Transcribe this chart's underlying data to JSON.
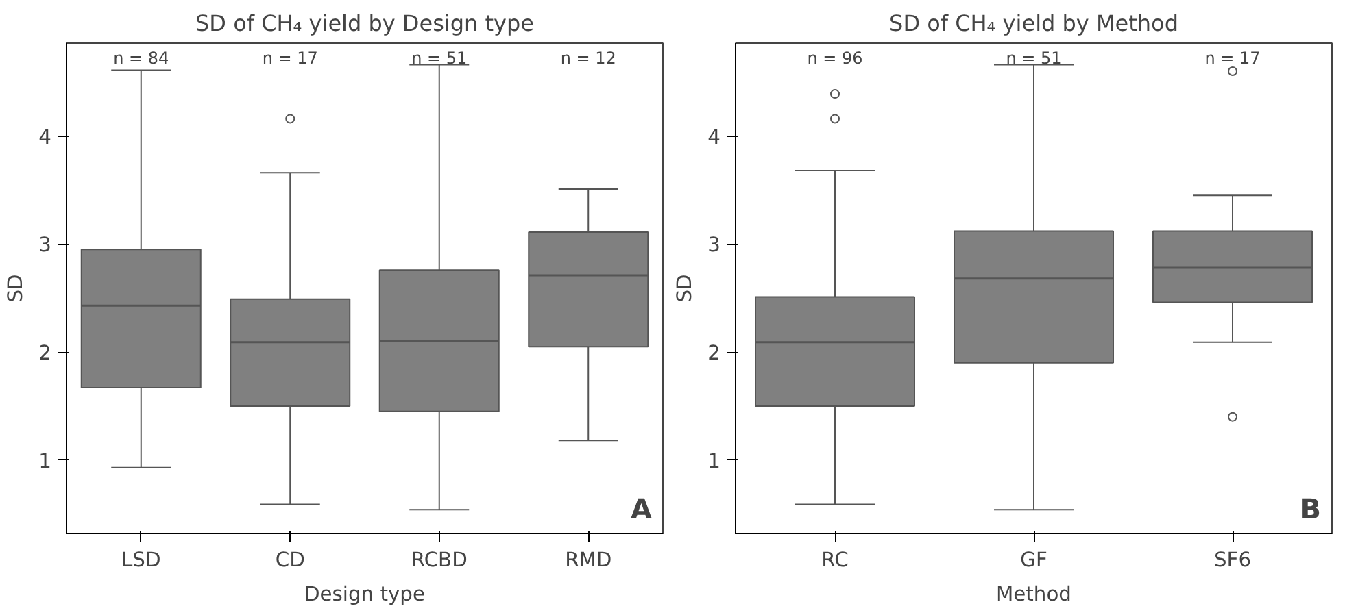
{
  "chart_data": [
    {
      "type": "box",
      "title": "SD of CH₄ yield by Design type",
      "xlabel": "Design type",
      "ylabel": "SD",
      "categories": [
        "LSD",
        "CD",
        "RCBD",
        "RMD"
      ],
      "color": "#808080",
      "boxes": [
        {
          "low": 0.93,
          "q1": 1.67,
          "median": 2.43,
          "q3": 2.95,
          "high": 4.61
        },
        {
          "low": 0.59,
          "q1": 1.5,
          "median": 2.09,
          "q3": 2.49,
          "high": 3.66,
          "outliers": [
            4.16
          ]
        },
        {
          "low": 0.54,
          "q1": 1.45,
          "median": 2.1,
          "q3": 2.76,
          "high": 4.66
        },
        {
          "low": 1.18,
          "q1": 2.05,
          "median": 2.71,
          "q3": 3.11,
          "high": 3.51
        }
      ],
      "ylim": [
        0.32,
        4.86
      ],
      "yticks": [
        1,
        2,
        3,
        4
      ],
      "grid": false,
      "annotations": [
        "n = 84",
        "n = 17",
        "n = 51",
        "n = 12",
        "A"
      ]
    },
    {
      "type": "box",
      "title": "SD of CH₄ yield by Method",
      "xlabel": "Method",
      "ylabel": "SD",
      "categories": [
        "RC",
        "GF",
        "SF6"
      ],
      "color": "#808080",
      "boxes": [
        {
          "low": 0.59,
          "q1": 1.5,
          "median": 2.09,
          "q3": 2.51,
          "high": 3.68,
          "outliers": [
            4.39,
            4.16
          ]
        },
        {
          "low": 0.54,
          "q1": 1.9,
          "median": 2.68,
          "q3": 3.12,
          "high": 4.66
        },
        {
          "low": 2.09,
          "q1": 2.46,
          "median": 2.78,
          "q3": 3.12,
          "high": 3.45,
          "outliers": [
            4.6,
            1.4
          ]
        }
      ],
      "ylim": [
        0.32,
        4.86
      ],
      "yticks": [
        1,
        2,
        3,
        4
      ],
      "grid": false,
      "annotations": [
        "n = 96",
        "n = 51",
        "n = 17",
        "B"
      ]
    }
  ]
}
